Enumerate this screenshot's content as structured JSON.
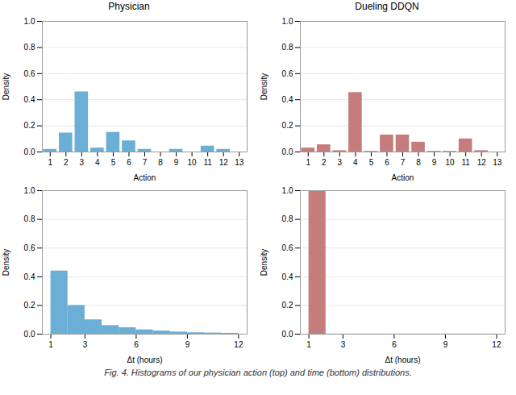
{
  "chart_data": [
    {
      "type": "bar",
      "title": "Physician",
      "x_label": "Action",
      "y_label": "Density",
      "x": [
        1,
        2,
        3,
        4,
        5,
        6,
        7,
        8,
        9,
        10,
        11,
        12
      ],
      "values": [
        0.02,
        0.145,
        0.46,
        0.03,
        0.15,
        0.085,
        0.02,
        0.0,
        0.02,
        0.0,
        0.045,
        0.02
      ],
      "color": "#6baed6",
      "xlim": [
        0.5,
        13.5
      ],
      "xticks": [
        1,
        2,
        3,
        4,
        5,
        6,
        7,
        8,
        9,
        10,
        11,
        12,
        13
      ],
      "ylim": [
        0.0,
        1.0
      ],
      "yticks": [
        {
          "value": 0,
          "label": "0.0"
        },
        0.2,
        0.4,
        0.6,
        0.8,
        {
          "value": 1,
          "label": "1.0"
        }
      ],
      "grid": true
    },
    {
      "type": "bar",
      "title": "Dueling DDQN",
      "x_label": "Action",
      "y_label": "Density",
      "x": [
        1,
        2,
        3,
        4,
        5,
        6,
        7,
        8,
        9,
        10,
        11,
        12
      ],
      "values": [
        0.03,
        0.055,
        0.01,
        0.455,
        0.005,
        0.13,
        0.13,
        0.075,
        0.005,
        0.005,
        0.1,
        0.01
      ],
      "color": "#c57c7c",
      "xlim": [
        0.5,
        13.5
      ],
      "xticks": [
        1,
        2,
        3,
        4,
        5,
        6,
        7,
        8,
        9,
        10,
        11,
        12,
        13
      ],
      "ylim": [
        0.0,
        1.0
      ],
      "yticks": [
        {
          "value": 0,
          "label": "0.0"
        },
        0.2,
        0.4,
        0.6,
        0.8,
        {
          "value": 1,
          "label": "1.0"
        }
      ],
      "grid": true
    },
    {
      "type": "histogram",
      "x_label": "Δt (hours)",
      "y_label": "Density",
      "bins": [
        1,
        2,
        3,
        4,
        5,
        6,
        7,
        8,
        9,
        10,
        11,
        12
      ],
      "values": [
        0.44,
        0.2,
        0.1,
        0.06,
        0.045,
        0.03,
        0.022,
        0.015,
        0.01,
        0.008,
        0.006
      ],
      "color": "#6baed6",
      "xlim": [
        0.5,
        12.5
      ],
      "xticks": [
        1,
        3,
        6,
        9,
        12
      ],
      "ylim": [
        0.0,
        1.0
      ],
      "yticks": [
        {
          "value": 0,
          "label": "0.0"
        },
        0.2,
        0.4,
        0.6,
        0.8,
        {
          "value": 1,
          "label": "1.0"
        }
      ],
      "grid": true
    },
    {
      "type": "histogram",
      "x_label": "Δt (hours)",
      "y_label": "Density",
      "bins": [
        1,
        2,
        3,
        4,
        5,
        6,
        7,
        8,
        9,
        10,
        11,
        12
      ],
      "values": [
        1.0,
        0.001,
        0.001,
        0.001,
        0.001,
        0.001,
        0.001,
        0.001,
        0.001,
        0.001,
        0.001
      ],
      "color": "#c57c7c",
      "xlim": [
        0.5,
        12.5
      ],
      "xticks": [
        1,
        3,
        6,
        9,
        12
      ],
      "ylim": [
        0.0,
        1.0
      ],
      "yticks": [
        {
          "value": 0,
          "label": "0.0"
        },
        0.2,
        0.4,
        0.6,
        0.8,
        {
          "value": 1,
          "label": "1.0"
        }
      ],
      "grid": true
    }
  ],
  "caption": "Fig. 4.  Histograms of our physician action (top) and time (bottom) distributions."
}
